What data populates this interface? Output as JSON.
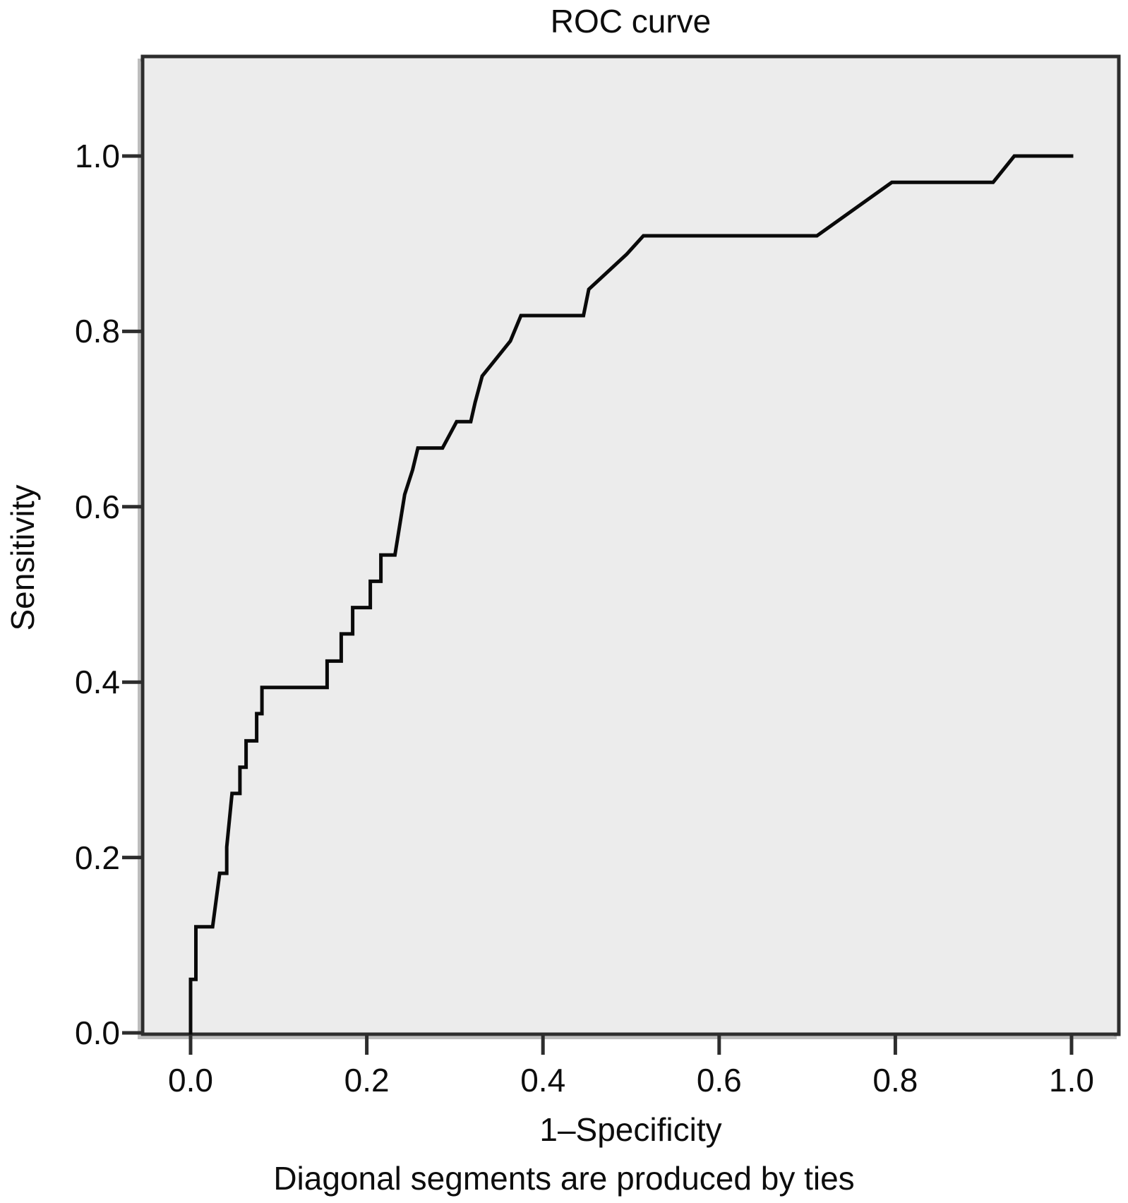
{
  "chart_data": {
    "type": "line",
    "subtype": "roc-step-curve",
    "title": "ROC curve",
    "xlabel": "1–Specificity",
    "ylabel": "Sensitivity",
    "caption": "Diagonal segments are produced by ties",
    "xlim": [
      0.0,
      1.0
    ],
    "ylim": [
      0.0,
      1.0
    ],
    "grid": false,
    "legend_position": "none",
    "x_ticks": [
      {
        "value": 0.0,
        "label": "0.0"
      },
      {
        "value": 0.2,
        "label": "0.2"
      },
      {
        "value": 0.4,
        "label": "0.4"
      },
      {
        "value": 0.6,
        "label": "0.6"
      },
      {
        "value": 0.8,
        "label": "0.8"
      },
      {
        "value": 1.0,
        "label": "1.0"
      }
    ],
    "y_ticks": [
      {
        "value": 0.0,
        "label": "0.0"
      },
      {
        "value": 0.2,
        "label": "0.2"
      },
      {
        "value": 0.4,
        "label": "0.4"
      },
      {
        "value": 0.6,
        "label": "0.6"
      },
      {
        "value": 0.8,
        "label": "0.8"
      },
      {
        "value": 1.0,
        "label": "1.0"
      }
    ],
    "colors": {
      "curve": "#0a0a0a",
      "plot_background": "#ececec",
      "frame": "#2d2d2d",
      "frame_shadow": "#bdbdbd",
      "page_background": "#ffffff",
      "text": "#0d0d0d"
    },
    "series": [
      {
        "name": "ROC curve",
        "points": [
          [
            0.0,
            0.0
          ],
          [
            0.0,
            0.061
          ],
          [
            0.006,
            0.061
          ],
          [
            0.006,
            0.121
          ],
          [
            0.025,
            0.121
          ],
          [
            0.033,
            0.182
          ],
          [
            0.041,
            0.182
          ],
          [
            0.041,
            0.212
          ],
          [
            0.047,
            0.273
          ],
          [
            0.056,
            0.273
          ],
          [
            0.056,
            0.303
          ],
          [
            0.063,
            0.303
          ],
          [
            0.063,
            0.333
          ],
          [
            0.075,
            0.333
          ],
          [
            0.075,
            0.364
          ],
          [
            0.081,
            0.364
          ],
          [
            0.081,
            0.394
          ],
          [
            0.155,
            0.394
          ],
          [
            0.155,
            0.424
          ],
          [
            0.171,
            0.424
          ],
          [
            0.171,
            0.455
          ],
          [
            0.184,
            0.455
          ],
          [
            0.184,
            0.485
          ],
          [
            0.204,
            0.485
          ],
          [
            0.204,
            0.515
          ],
          [
            0.216,
            0.515
          ],
          [
            0.216,
            0.545
          ],
          [
            0.232,
            0.545
          ],
          [
            0.243,
            0.614
          ],
          [
            0.252,
            0.642
          ],
          [
            0.258,
            0.667
          ],
          [
            0.286,
            0.667
          ],
          [
            0.302,
            0.697
          ],
          [
            0.318,
            0.697
          ],
          [
            0.323,
            0.719
          ],
          [
            0.331,
            0.749
          ],
          [
            0.363,
            0.789
          ],
          [
            0.375,
            0.818
          ],
          [
            0.446,
            0.818
          ],
          [
            0.452,
            0.848
          ],
          [
            0.495,
            0.888
          ],
          [
            0.514,
            0.909
          ],
          [
            0.711,
            0.909
          ],
          [
            0.796,
            0.97
          ],
          [
            0.911,
            0.97
          ],
          [
            0.935,
            1.0
          ],
          [
            1.0,
            1.0
          ]
        ]
      }
    ]
  }
}
